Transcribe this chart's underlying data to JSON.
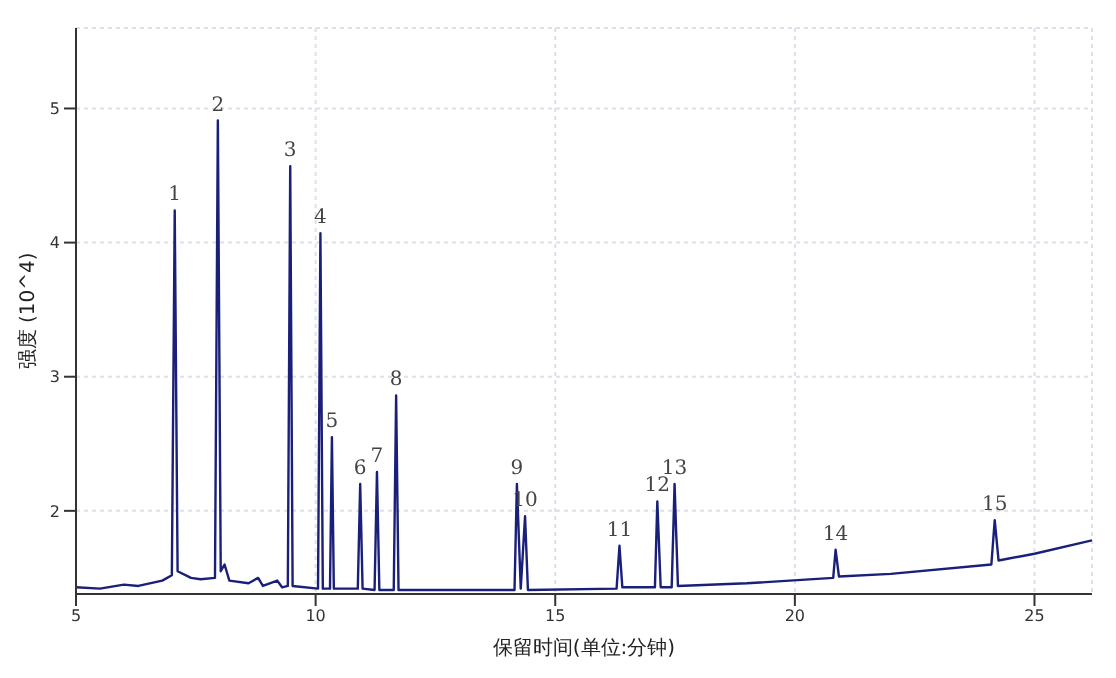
{
  "chart_data": {
    "type": "line",
    "xlabel": "保留时间(单位:分钟)",
    "ylabel": "强度 (10^4)",
    "x": [
      5,
      5.5,
      6.0,
      6.3,
      6.8,
      7.0,
      7.06,
      7.12,
      7.4,
      7.6,
      7.9,
      7.96,
      8.02,
      8.1,
      8.2,
      8.6,
      8.8,
      8.9,
      9.2,
      9.3,
      9.42,
      9.47,
      9.52,
      10.05,
      10.1,
      10.15,
      10.3,
      10.34,
      10.38,
      10.88,
      10.93,
      10.98,
      11.23,
      11.28,
      11.33,
      11.63,
      11.68,
      11.73,
      13,
      14.15,
      14.2,
      14.28,
      14.37,
      14.43,
      16.28,
      16.34,
      16.4,
      17.08,
      17.13,
      17.2,
      17.43,
      17.49,
      17.56,
      19,
      20.8,
      20.85,
      20.92,
      22,
      24.1,
      24.17,
      24.25,
      25,
      26.2
    ],
    "series": [
      {
        "color": "#1a1f7a",
        "values": [
          1.43,
          1.42,
          1.45,
          1.44,
          1.48,
          1.52,
          4.24,
          1.55,
          1.5,
          1.49,
          1.5,
          4.91,
          1.55,
          1.6,
          1.48,
          1.46,
          1.5,
          1.44,
          1.48,
          1.43,
          1.44,
          4.57,
          1.44,
          1.42,
          4.07,
          1.42,
          1.42,
          2.55,
          1.42,
          1.42,
          2.2,
          1.42,
          1.41,
          2.29,
          1.41,
          1.41,
          2.86,
          1.41,
          1.41,
          1.41,
          2.2,
          1.42,
          1.96,
          1.41,
          1.42,
          1.74,
          1.43,
          1.43,
          2.07,
          1.43,
          1.43,
          2.2,
          1.44,
          1.46,
          1.5,
          1.71,
          1.51,
          1.53,
          1.6,
          1.93,
          1.63,
          1.68,
          1.78
        ]
      }
    ],
    "annotations": [
      {
        "text": "1",
        "x": 7.06,
        "y": 4.24
      },
      {
        "text": "2",
        "x": 7.96,
        "y": 4.91
      },
      {
        "text": "3",
        "x": 9.47,
        "y": 4.57
      },
      {
        "text": "4",
        "x": 10.1,
        "y": 4.07
      },
      {
        "text": "5",
        "x": 10.34,
        "y": 2.55
      },
      {
        "text": "6",
        "x": 10.93,
        "y": 2.2
      },
      {
        "text": "7",
        "x": 11.28,
        "y": 2.29
      },
      {
        "text": "8",
        "x": 11.68,
        "y": 2.86
      },
      {
        "text": "9",
        "x": 14.2,
        "y": 2.2
      },
      {
        "text": "10",
        "x": 14.37,
        "y": 1.96
      },
      {
        "text": "11",
        "x": 16.34,
        "y": 1.74
      },
      {
        "text": "12",
        "x": 17.13,
        "y": 2.07
      },
      {
        "text": "13",
        "x": 17.49,
        "y": 2.2
      },
      {
        "text": "14",
        "x": 20.85,
        "y": 1.71
      },
      {
        "text": "15",
        "x": 24.17,
        "y": 1.93
      }
    ],
    "xlim": [
      5,
      26.2
    ],
    "xticks": [
      5,
      10,
      15,
      20,
      25
    ],
    "ylim": [
      1.38,
      5.6
    ],
    "yticks": [
      2,
      3,
      4,
      5
    ],
    "grid": true,
    "marker": "none",
    "line_style": "solid"
  }
}
